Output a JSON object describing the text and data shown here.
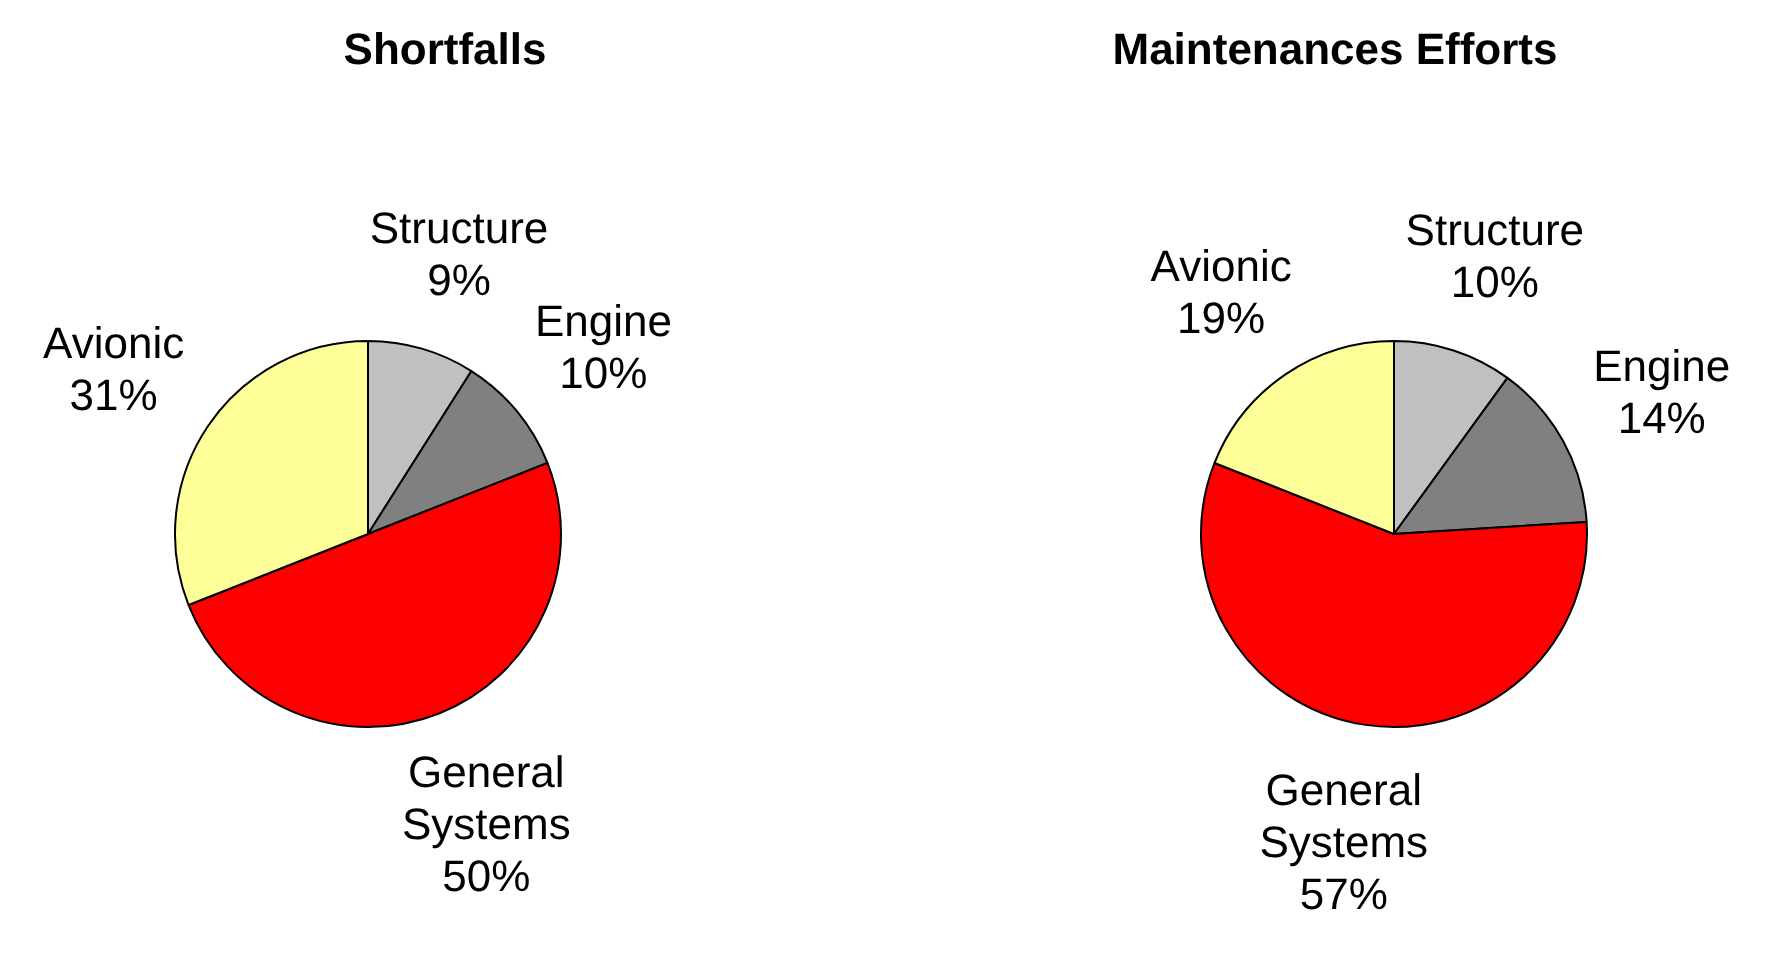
{
  "chart_data": [
    {
      "type": "pie",
      "title": "Shortfalls",
      "categories": [
        "Structure",
        "Engine",
        "General Systems",
        "Avionic"
      ],
      "values": [
        9,
        10,
        50,
        31
      ],
      "value_labels": [
        "9%",
        "10%",
        "50%",
        "31%"
      ],
      "colors": [
        "#c0c0c0",
        "#808080",
        "#ff0000",
        "#ffff99"
      ],
      "legend": false
    },
    {
      "type": "pie",
      "title": "Maintenances Efforts",
      "categories": [
        "Structure",
        "Engine",
        "General Systems",
        "Avionic"
      ],
      "values": [
        10,
        14,
        57,
        19
      ],
      "value_labels": [
        "10%",
        "14%",
        "57%",
        "19%"
      ],
      "colors": [
        "#c0c0c0",
        "#808080",
        "#ff0000",
        "#ffff99"
      ],
      "legend": false
    }
  ]
}
